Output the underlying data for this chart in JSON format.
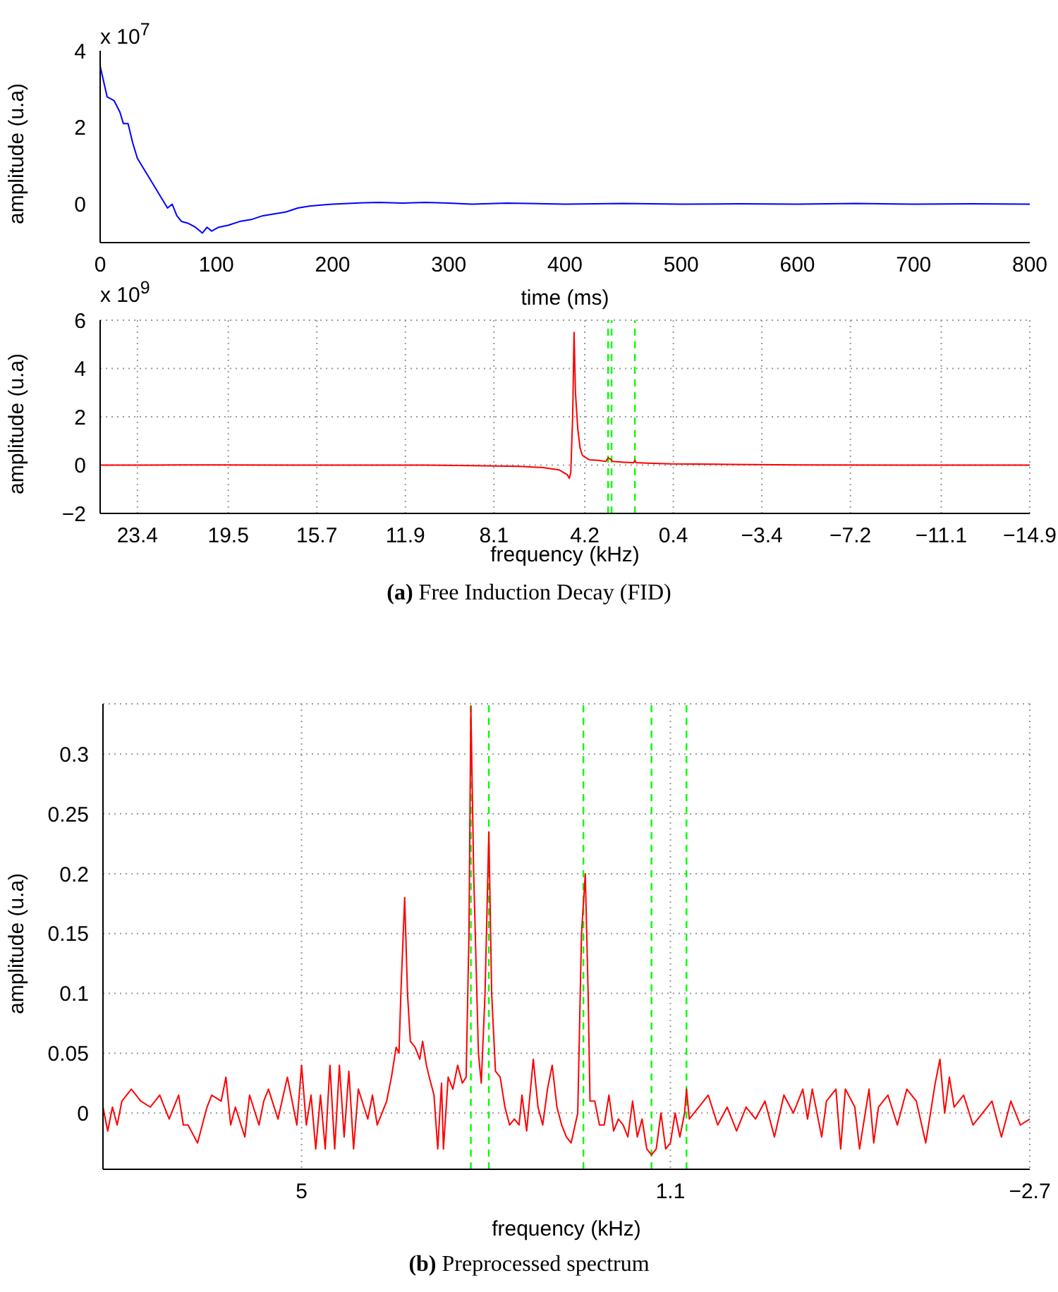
{
  "chart_data": [
    {
      "type": "line",
      "xlabel": "time (ms)",
      "ylabel": "amplitude (u.a)",
      "annotations": [
        "x 10$^{7}$",
        "(a) Free Induction Decay (FID)"
      ],
      "xlim": [
        0,
        800
      ],
      "xticks": [
        0,
        100,
        200,
        300,
        400,
        500,
        600,
        700,
        800
      ],
      "ylim": [
        -1,
        4
      ],
      "yticks": [
        0,
        2,
        4
      ],
      "x": [
        0,
        3,
        6,
        12,
        17,
        20,
        24,
        28,
        32,
        36,
        42,
        48,
        52,
        58,
        62,
        66,
        70,
        76,
        82,
        88,
        92,
        96,
        102,
        110,
        120,
        130,
        140,
        150,
        160,
        170,
        180,
        190,
        200,
        220,
        240,
        260,
        280,
        300,
        320,
        350,
        400,
        450,
        500,
        550,
        600,
        650,
        700,
        750,
        800
      ],
      "series": [
        {
          "color": "#0000ff",
          "values": [
            3.6,
            3.2,
            2.8,
            2.7,
            2.4,
            2.1,
            2.1,
            1.6,
            1.2,
            1.0,
            0.7,
            0.4,
            0.2,
            -0.1,
            0.0,
            -0.3,
            -0.45,
            -0.5,
            -0.6,
            -0.75,
            -0.6,
            -0.7,
            -0.6,
            -0.55,
            -0.45,
            -0.4,
            -0.3,
            -0.25,
            -0.2,
            -0.1,
            -0.05,
            -0.02,
            0,
            0.03,
            0.05,
            0.03,
            0.05,
            0.03,
            0,
            0.03,
            0,
            0.02,
            0,
            0.01,
            0,
            0.02,
            0,
            0.01,
            0
          ]
        }
      ]
    },
    {
      "type": "line",
      "xlabel": "frequency (kHz)",
      "ylabel": "amplitude (u.a)",
      "annotations": [
        "x 10$^{9}$"
      ],
      "xlim": [
        25,
        -14.9
      ],
      "xticks": [
        23.4,
        19.5,
        15.7,
        11.9,
        8.1,
        4.2,
        0.4,
        -3.4,
        -7.2,
        -11.1,
        -14.9
      ],
      "ylim": [
        -2,
        6
      ],
      "yticks": [
        -2,
        0,
        2,
        4,
        6
      ],
      "grid": true,
      "x": [
        25,
        23,
        20,
        17,
        14,
        11,
        9,
        7,
        6,
        5.3,
        4.95,
        4.86,
        4.8,
        4.72,
        4.66,
        4.6,
        4.5,
        4.4,
        4.3,
        4.15,
        4.0,
        3.6,
        3.3,
        3.2,
        3.1,
        3.0,
        2.5,
        2.1,
        2.05,
        2.0,
        1.5,
        0.5,
        -2,
        -5,
        -10,
        -14.9
      ],
      "series": [
        {
          "color": "#ff0000",
          "values": [
            0,
            0,
            0.01,
            0,
            0,
            0,
            -0.02,
            -0.05,
            -0.1,
            -0.2,
            -0.4,
            -0.55,
            -0.3,
            2.0,
            5.5,
            3.0,
            1.5,
            0.7,
            0.4,
            0.3,
            0.22,
            0.2,
            0.15,
            0.3,
            0.25,
            0.15,
            0.12,
            0.1,
            0.2,
            0.1,
            0.08,
            0.05,
            0.03,
            0.01,
            0,
            0
          ]
        }
      ],
      "ref_lines": [
        {
          "axis": "x",
          "value": 3.2,
          "color": "#00ff00",
          "line_style": "dashed"
        },
        {
          "axis": "x",
          "value": 3.05,
          "color": "#00ff00",
          "line_style": "dashed"
        },
        {
          "axis": "x",
          "value": 2.05,
          "color": "#00ff00",
          "line_style": "dashed"
        }
      ]
    },
    {
      "type": "line",
      "xlabel": "frequency (kHz)",
      "ylabel": "amplitude (u.a)",
      "annotations": [
        "(b) Preprocessed spectrum"
      ],
      "xlim": [
        7.1,
        -2.7
      ],
      "xticks": [
        5,
        1.1,
        -2.7
      ],
      "ylim": [
        -0.047,
        0.342
      ],
      "yticks": [
        0,
        0.05,
        0.1,
        0.15,
        0.2,
        0.25,
        0.3
      ],
      "grid": true,
      "x": [
        7.1,
        7.05,
        7.0,
        6.95,
        6.9,
        6.8,
        6.7,
        6.6,
        6.5,
        6.4,
        6.3,
        6.25,
        6.2,
        6.1,
        6.0,
        5.95,
        5.85,
        5.8,
        5.75,
        5.7,
        5.6,
        5.55,
        5.45,
        5.4,
        5.35,
        5.25,
        5.15,
        5.05,
        5.0,
        4.95,
        4.9,
        4.85,
        4.8,
        4.75,
        4.7,
        4.65,
        4.6,
        4.55,
        4.5,
        4.45,
        4.4,
        4.3,
        4.25,
        4.2,
        4.1,
        4.05,
        4.0,
        3.97,
        3.95,
        3.91,
        3.88,
        3.85,
        3.8,
        3.75,
        3.72,
        3.68,
        3.65,
        3.6,
        3.56,
        3.52,
        3.5,
        3.45,
        3.4,
        3.35,
        3.3,
        3.26,
        3.23,
        3.21,
        3.18,
        3.13,
        3.1,
        3.06,
        3.02,
        2.99,
        2.95,
        2.9,
        2.85,
        2.8,
        2.75,
        2.7,
        2.67,
        2.62,
        2.55,
        2.5,
        2.45,
        2.4,
        2.35,
        2.3,
        2.25,
        2.2,
        2.15,
        2.08,
        2.04,
        2.0,
        1.97,
        1.95,
        1.9,
        1.85,
        1.8,
        1.75,
        1.7,
        1.65,
        1.6,
        1.55,
        1.5,
        1.45,
        1.4,
        1.35,
        1.3,
        1.25,
        1.2,
        1.15,
        1.1,
        1.05,
        1.0,
        0.95,
        0.93,
        0.9,
        0.8,
        0.7,
        0.6,
        0.5,
        0.4,
        0.3,
        0.2,
        0.1,
        0.0,
        -0.1,
        -0.2,
        -0.3,
        -0.35,
        -0.4,
        -0.5,
        -0.55,
        -0.65,
        -0.7,
        -0.75,
        -0.85,
        -0.9,
        -1.0,
        -1.05,
        -1.1,
        -1.2,
        -1.3,
        -1.4,
        -1.5,
        -1.6,
        -1.7,
        -1.75,
        -1.8,
        -1.85,
        -1.9,
        -2.0,
        -2.1,
        -2.2,
        -2.3,
        -2.4,
        -2.5,
        -2.6,
        -2.7
      ],
      "series": [
        {
          "color": "#ff0000",
          "values": [
            0.005,
            -0.015,
            0.005,
            -0.01,
            0.01,
            0.02,
            0.01,
            0.005,
            0.015,
            -0.005,
            0.015,
            -0.01,
            -0.01,
            -0.025,
            0.005,
            0.015,
            0.01,
            0.03,
            -0.01,
            0.005,
            -0.02,
            0.015,
            -0.01,
            0.01,
            0.02,
            -0.005,
            0.03,
            -0.01,
            0.04,
            -0.01,
            0.015,
            -0.03,
            0.015,
            -0.03,
            0.04,
            -0.03,
            0.04,
            -0.02,
            0.035,
            -0.03,
            0.02,
            -0.005,
            0.015,
            -0.01,
            0.01,
            0.03,
            0.055,
            0.05,
            0.1,
            0.18,
            0.1,
            0.06,
            0.055,
            0.045,
            0.06,
            0.04,
            0.03,
            0.015,
            -0.03,
            0.025,
            -0.03,
            0.03,
            0.02,
            0.04,
            0.025,
            0.03,
            0.15,
            0.34,
            0.2,
            0.05,
            0.025,
            0.1,
            0.235,
            0.1,
            0.035,
            0.03,
            0.005,
            -0.01,
            -0.005,
            -0.01,
            0.015,
            -0.015,
            0.045,
            0.005,
            -0.01,
            0.02,
            0.04,
            0.005,
            -0.01,
            -0.02,
            -0.025,
            0.0,
            0.15,
            0.2,
            0.1,
            0.01,
            0.01,
            -0.01,
            -0.01,
            0.015,
            -0.015,
            -0.005,
            -0.01,
            -0.02,
            0.01,
            -0.02,
            -0.005,
            -0.03,
            -0.035,
            -0.03,
            0.0,
            -0.03,
            -0.025,
            0.0,
            -0.02,
            0.0,
            0.02,
            -0.005,
            0.005,
            0.015,
            -0.01,
            0.005,
            -0.015,
            0.005,
            -0.005,
            0.01,
            -0.02,
            0.015,
            0.0,
            0.02,
            -0.005,
            0.02,
            -0.02,
            0.01,
            0.02,
            -0.03,
            0.02,
            0.005,
            -0.03,
            0.02,
            -0.025,
            0.005,
            0.015,
            -0.01,
            0.02,
            0.01,
            -0.025,
            0.025,
            0.045,
            0.0,
            0.03,
            0.005,
            0.015,
            -0.01,
            0.0,
            0.01,
            -0.02,
            0.01,
            -0.01,
            -0.005
          ]
        }
      ],
      "ref_lines": [
        {
          "axis": "x",
          "value": 3.21,
          "color": "#00ff00",
          "line_style": "dashed"
        },
        {
          "axis": "x",
          "value": 3.02,
          "color": "#00ff00",
          "line_style": "dashed"
        },
        {
          "axis": "x",
          "value": 2.02,
          "color": "#00ff00",
          "line_style": "dashed"
        },
        {
          "axis": "x",
          "value": 1.3,
          "color": "#00ff00",
          "line_style": "dashed"
        },
        {
          "axis": "x",
          "value": 0.93,
          "color": "#00ff00",
          "line_style": "dashed"
        }
      ]
    }
  ]
}
